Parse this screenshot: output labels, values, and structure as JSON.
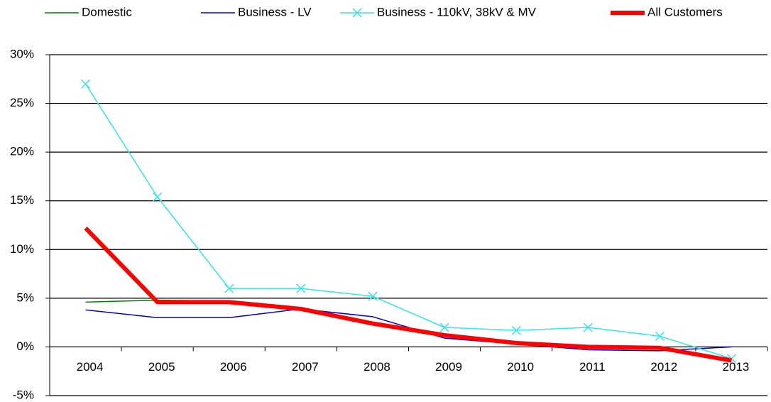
{
  "chart_data": {
    "type": "line",
    "categories": [
      "2004",
      "2005",
      "2006",
      "2007",
      "2008",
      "2009",
      "2010",
      "2011",
      "2012",
      "2013"
    ],
    "series": [
      {
        "name": "Domestic",
        "color": "#008000",
        "line_width": 1.5,
        "values": [
          4.6,
          4.8,
          4.7,
          3.9,
          2.4,
          1.2,
          0.5,
          0.1,
          -0.1,
          -1.3
        ]
      },
      {
        "name": "Business - LV",
        "color": "#0000cc",
        "line_width": 1.5,
        "values": [
          3.8,
          3.0,
          3.0,
          3.9,
          3.1,
          0.9,
          0.3,
          -0.3,
          -0.4,
          0.0
        ]
      },
      {
        "name": "Business - 110kV, 38kV & MV",
        "color": "#33e6e6",
        "line_width": 1.5,
        "marker": "x",
        "values": [
          27.0,
          15.4,
          6.0,
          6.0,
          5.2,
          2.0,
          1.7,
          2.0,
          1.1,
          -1.2
        ]
      },
      {
        "name": "All Customers",
        "color": "#ff0000",
        "line_width": 6,
        "values": [
          12.2,
          4.6,
          4.6,
          3.9,
          2.4,
          1.2,
          0.4,
          0.0,
          -0.1,
          -1.4
        ]
      }
    ],
    "ylim": [
      -5,
      30
    ],
    "yticks": [
      {
        "value": -5,
        "label": "-5%"
      },
      {
        "value": 0,
        "label": "0%"
      },
      {
        "value": 5,
        "label": "5%"
      },
      {
        "value": 10,
        "label": "10%"
      },
      {
        "value": 15,
        "label": "15%"
      },
      {
        "value": 20,
        "label": "20%"
      },
      {
        "value": 25,
        "label": "25%"
      },
      {
        "value": 30,
        "label": "30%"
      }
    ],
    "grid": true
  }
}
